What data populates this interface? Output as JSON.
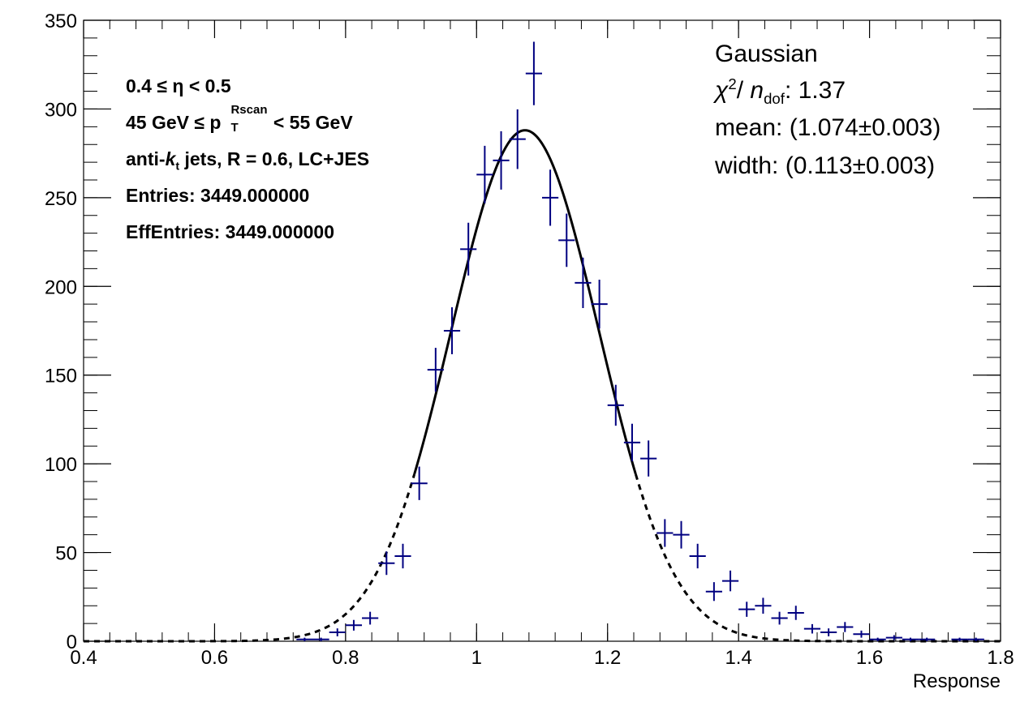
{
  "chart_data": {
    "type": "scatter",
    "xlabel": "Response",
    "ylabel": "",
    "xlim": [
      0.4,
      1.8
    ],
    "ylim": [
      0,
      350
    ],
    "x_ticks": [
      "0.4",
      "0.6",
      "0.8",
      "1",
      "1.2",
      "1.4",
      "1.6",
      "1.8"
    ],
    "y_ticks": [
      "0",
      "50",
      "100",
      "150",
      "200",
      "250",
      "300",
      "350"
    ],
    "bin_width": 0.025,
    "series": [
      {
        "color": "#000080",
        "x": [
          0.7375,
          0.7625,
          0.7875,
          0.8125,
          0.8375,
          0.8625,
          0.8875,
          0.9125,
          0.9375,
          0.9625,
          0.9875,
          1.0125,
          1.0375,
          1.0625,
          1.0875,
          1.1125,
          1.1375,
          1.1625,
          1.1875,
          1.2125,
          1.2375,
          1.2625,
          1.2875,
          1.3125,
          1.3375,
          1.3625,
          1.3875,
          1.4125,
          1.4375,
          1.4625,
          1.4875,
          1.5125,
          1.5375,
          1.5625,
          1.5875,
          1.6125,
          1.6375,
          1.6625,
          1.6875,
          1.7375,
          1.7625
        ],
        "y": [
          1,
          1,
          5,
          9,
          13,
          44,
          48,
          89,
          153,
          175,
          221,
          263,
          271,
          283,
          320,
          250,
          226,
          202,
          190,
          133,
          112,
          103,
          61,
          60,
          48,
          28,
          34,
          18,
          20,
          13,
          16,
          7,
          5,
          8,
          4,
          1,
          2,
          1,
          1,
          1,
          1
        ]
      }
    ],
    "fit": {
      "type": "gaussian",
      "mean": 1.074,
      "sigma": 0.113,
      "norm": 288,
      "solid_range": [
        0.905,
        1.243
      ],
      "color": "#000000"
    }
  },
  "info": {
    "eta_range": "0.4  ≤ η < 0.5",
    "pt_prefix": "45 GeV  ≤ p",
    "pt_sup": "Rscan",
    "pt_sub": "T",
    "pt_suffix": " < 55 GeV",
    "jets_prefix": "anti-",
    "jets_k": "k",
    "jets_t": "t",
    "jets_suffix": " jets, R = 0.6, LC+JES",
    "entries": "Entries: 3449.000000",
    "eff_entries": "EffEntries: 3449.000000"
  },
  "fit_box": {
    "model": "Gaussian",
    "chi_symbol": "χ",
    "chi_exp": "2",
    "slash": "/ ",
    "ndf_n": "n",
    "ndf_sub": "dof",
    "chi_value": ": 1.37",
    "mean": "mean: (1.074±0.003)",
    "width": "width: (0.113±0.003)"
  }
}
